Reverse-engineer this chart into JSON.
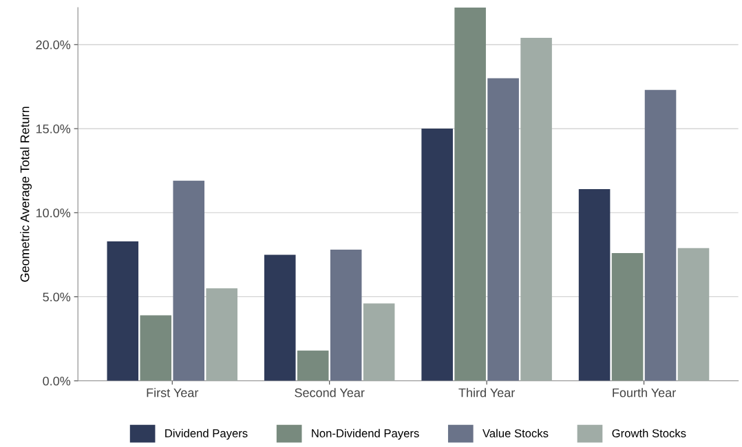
{
  "chart_data": {
    "type": "bar",
    "ylabel": "Geometric Average Total Return",
    "categories": [
      "First Year",
      "Second Year",
      "Third Year",
      "Fourth Year"
    ],
    "series": [
      {
        "name": "Dividend Payers",
        "color": "#2e3a59",
        "values": [
          8.3,
          7.5,
          15.0,
          11.4
        ]
      },
      {
        "name": "Non-Dividend Payers",
        "color": "#788a7e",
        "values": [
          3.9,
          1.8,
          22.2,
          7.6
        ]
      },
      {
        "name": "Value Stocks",
        "color": "#6a7389",
        "values": [
          11.9,
          7.8,
          18.0,
          17.3
        ]
      },
      {
        "name": "Growth Stocks",
        "color": "#a0aca6",
        "values": [
          5.5,
          4.6,
          20.4,
          7.9
        ]
      }
    ],
    "ylim": [
      0,
      22.2
    ],
    "yticks": [
      {
        "value": 0,
        "label": "0.0%"
      },
      {
        "value": 5,
        "label": "5.0%"
      },
      {
        "value": 10,
        "label": "10.0%"
      },
      {
        "value": 15,
        "label": "15.0%"
      },
      {
        "value": 20,
        "label": "20.0%"
      }
    ],
    "grid": "y",
    "legend": "bottom"
  }
}
